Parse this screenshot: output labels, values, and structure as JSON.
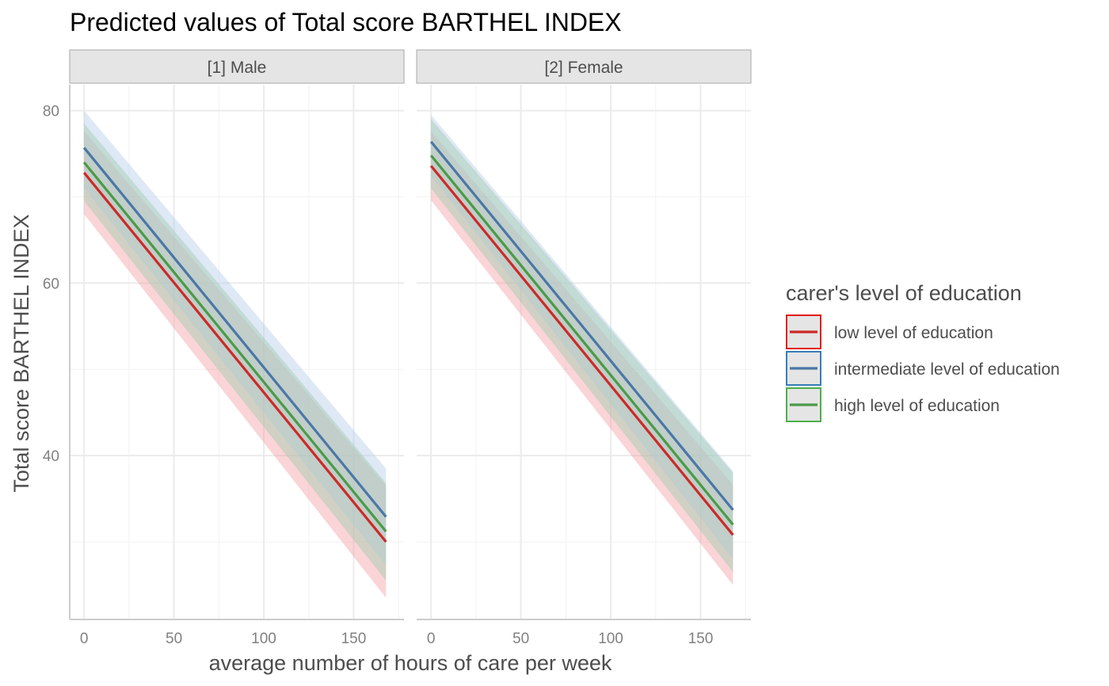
{
  "chart_data": {
    "type": "line",
    "title": "Predicted values of Total score BARTHEL INDEX",
    "xlabel": "average number of hours of care per week",
    "ylabel": "Total score BARTHEL INDEX",
    "xlim": [
      -8,
      178
    ],
    "ylim": [
      21,
      83
    ],
    "x_ticks": [
      0,
      50,
      100,
      150
    ],
    "x_tick_labels": [
      "0",
      "50",
      "100",
      "150"
    ],
    "y_ticks": [
      40,
      60,
      80
    ],
    "y_tick_labels": [
      "40",
      "60",
      "80"
    ],
    "grid": true,
    "legend": {
      "title": "carer's level of education",
      "position": "right"
    },
    "panels": [
      {
        "label": "[1] Male",
        "series": [
          {
            "name": "low level of education",
            "color": "#cc2a28",
            "fill": "#f5a0a6",
            "x": [
              0,
              168
            ],
            "y": [
              72.8,
              30.0
            ],
            "ci_low": [
              68.0,
              23.5
            ],
            "ci_high": [
              77.6,
              36.5
            ]
          },
          {
            "name": "intermediate level of education",
            "color": "#4a77a7",
            "fill": "#b8cbe8",
            "x": [
              0,
              168
            ],
            "y": [
              75.7,
              32.9
            ],
            "ci_low": [
              71.0,
              27.3
            ],
            "ci_high": [
              80.0,
              38.5
            ]
          },
          {
            "name": "high level of education",
            "color": "#4b9a48",
            "fill": "#9fccb0",
            "x": [
              0,
              168
            ],
            "y": [
              74.0,
              31.2
            ],
            "ci_low": [
              69.5,
              25.5
            ],
            "ci_high": [
              78.5,
              36.8
            ]
          }
        ]
      },
      {
        "label": "[2] Female",
        "series": [
          {
            "name": "low level of education",
            "color": "#cc2a28",
            "fill": "#f5a0a6",
            "x": [
              0,
              168
            ],
            "y": [
              73.6,
              30.8
            ],
            "ci_low": [
              69.6,
              25.0
            ],
            "ci_high": [
              77.6,
              36.6
            ]
          },
          {
            "name": "intermediate level of education",
            "color": "#4a77a7",
            "fill": "#b8cbe8",
            "x": [
              0,
              168
            ],
            "y": [
              76.4,
              33.7
            ],
            "ci_low": [
              72.4,
              28.0
            ],
            "ci_high": [
              79.5,
              38.2
            ]
          },
          {
            "name": "high level of education",
            "color": "#4b9a48",
            "fill": "#9fccb0",
            "x": [
              0,
              168
            ],
            "y": [
              74.8,
              32.0
            ],
            "ci_low": [
              71.0,
              26.5
            ],
            "ci_high": [
              79.0,
              38.0
            ]
          }
        ]
      }
    ],
    "legend_items": [
      {
        "label": "low level of education",
        "color": "#cc2a28",
        "box_color": "#e31a1c"
      },
      {
        "label": "intermediate level of education",
        "color": "#4a77a7",
        "box_color": "#377eb8"
      },
      {
        "label": "high level of education",
        "color": "#4b9a48",
        "box_color": "#4daf4a"
      }
    ]
  }
}
